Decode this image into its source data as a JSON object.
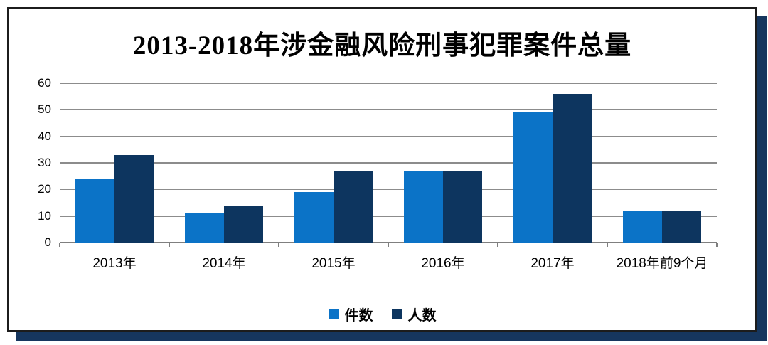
{
  "frame": {
    "background": "#ffffff",
    "border_color": "#1c1c1c",
    "shadow_color": "#16365e"
  },
  "chart_data": {
    "type": "bar",
    "title": "2013-2018年涉金融风险刑事犯罪案件总量",
    "categories": [
      "2013年",
      "2014年",
      "2015年",
      "2016年",
      "2017年",
      "2018年前9个月"
    ],
    "series": [
      {
        "name": "件数",
        "color": "#0b73c7",
        "values": [
          24,
          11,
          19,
          27,
          49,
          12
        ]
      },
      {
        "name": "人数",
        "color": "#0d355f",
        "values": [
          33,
          14,
          27,
          27,
          56,
          12
        ]
      }
    ],
    "ylim": [
      0,
      60
    ],
    "yticks": [
      0,
      10,
      20,
      30,
      40,
      50,
      60
    ],
    "grid": true,
    "gridline_color": "#8c8c8c",
    "axis_color": "#7f7f7f",
    "text_color": "#000000",
    "legend_position": "bottom"
  }
}
